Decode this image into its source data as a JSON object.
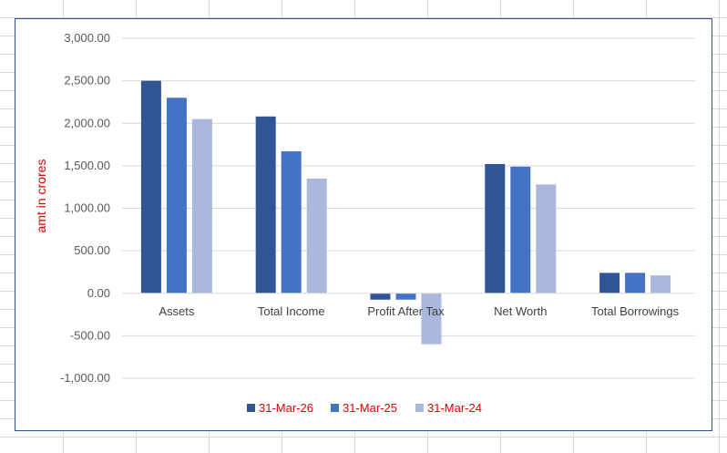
{
  "chart_data": {
    "type": "bar",
    "categories": [
      "Assets",
      "Total Income",
      "Profit After Tax",
      "Net Worth",
      "Total Borrowings"
    ],
    "series": [
      {
        "name": "31-Mar-26",
        "color": "#2f5597",
        "values": [
          2500,
          2080,
          -75,
          1520,
          240
        ]
      },
      {
        "name": "31-Mar-25",
        "color": "#4472c4",
        "values": [
          2300,
          1670,
          -75,
          1490,
          240
        ]
      },
      {
        "name": "31-Mar-24",
        "color": "#a9b8dc",
        "values": [
          2050,
          1350,
          -600,
          1280,
          210
        ]
      }
    ],
    "ylabel": "amt in crores",
    "ylim": [
      -1000,
      3000
    ],
    "yticks": [
      3000,
      2500,
      2000,
      1500,
      1000,
      500,
      0,
      -500,
      -1000
    ],
    "ytick_labels": [
      "3,000.00",
      "2,500.00",
      "2,000.00",
      "1,500.00",
      "1,000.00",
      "500.00",
      "0.00",
      "-500.00",
      "-1,000.00"
    ],
    "grid": true,
    "legend_position": "bottom"
  }
}
